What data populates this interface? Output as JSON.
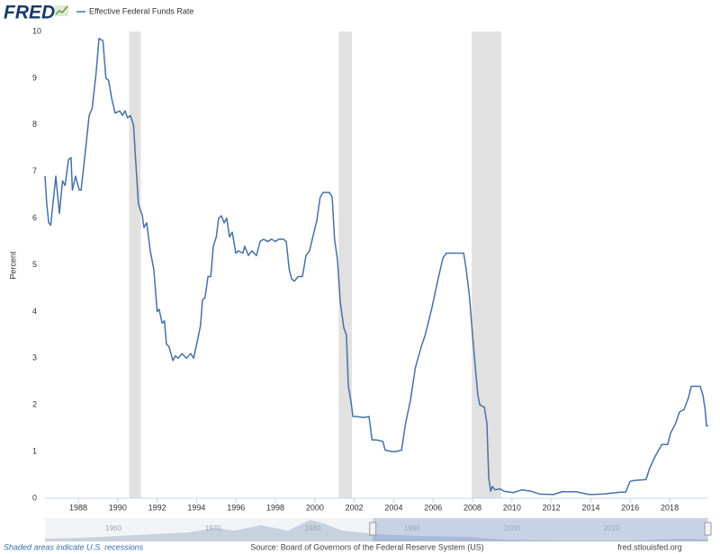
{
  "header": {
    "logo": "FRED"
  },
  "footer": {
    "note": "Shaded areas indicate U.S. recessions",
    "source": "Source: Board of Governors of the Federal Reserve System (US)",
    "site": "fred.stlouisfed.org"
  },
  "chart_data": {
    "type": "line",
    "ylabel": "Percent",
    "x": [
      1986.31,
      1986.4,
      1986.5,
      1986.6,
      1986.86,
      1987.04,
      1987.2,
      1987.33,
      1987.5,
      1987.63,
      1987.7,
      1987.86,
      1988.05,
      1988.14,
      1988.3,
      1988.55,
      1988.7,
      1988.9,
      1989.05,
      1989.25,
      1989.4,
      1989.54,
      1989.7,
      1989.87,
      1990.1,
      1990.24,
      1990.37,
      1990.5,
      1990.64,
      1990.8,
      1990.9,
      1991.05,
      1991.25,
      1991.33,
      1991.47,
      1991.65,
      1991.83,
      1992.0,
      1992.1,
      1992.25,
      1992.37,
      1992.47,
      1992.6,
      1992.8,
      1992.92,
      1993.07,
      1993.26,
      1993.48,
      1993.7,
      1993.85,
      1994.03,
      1994.2,
      1994.3,
      1994.43,
      1994.58,
      1994.72,
      1994.85,
      1995.0,
      1995.12,
      1995.26,
      1995.4,
      1995.53,
      1995.67,
      1995.81,
      1995.99,
      1996.12,
      1996.35,
      1996.44,
      1996.63,
      1996.8,
      1997.04,
      1997.22,
      1997.4,
      1997.6,
      1997.81,
      1998.0,
      1998.17,
      1998.4,
      1998.55,
      1998.7,
      1998.82,
      1998.96,
      1999.15,
      1999.37,
      1999.55,
      1999.73,
      1999.9,
      2000.1,
      2000.27,
      2000.42,
      2000.74,
      2000.88,
      2001.0,
      2001.15,
      2001.29,
      2001.47,
      2001.6,
      2001.7,
      2001.84,
      2001.93,
      2002.1,
      2002.47,
      2002.75,
      2002.9,
      2003.1,
      2003.45,
      2003.57,
      2003.9,
      2004.1,
      2004.4,
      2004.6,
      2004.85,
      2005.1,
      2005.4,
      2005.6,
      2005.95,
      2006.2,
      2006.5,
      2006.67,
      2007.3,
      2007.55,
      2007.68,
      2007.85,
      2007.95,
      2008.1,
      2008.27,
      2008.37,
      2008.6,
      2008.73,
      2008.82,
      2008.92,
      2009.0,
      2009.14,
      2009.4,
      2009.6,
      2010.06,
      2010.5,
      2010.97,
      2011.4,
      2012.1,
      2012.55,
      2013.25,
      2013.93,
      2014.6,
      2015.5,
      2015.77,
      2015.99,
      2016.2,
      2016.8,
      2016.99,
      2017.27,
      2017.6,
      2017.9,
      2018.05,
      2018.3,
      2018.5,
      2018.73,
      2018.95,
      2019.1,
      2019.55,
      2019.69,
      2019.8,
      2019.87,
      2019.96
    ],
    "series": [
      {
        "name": "Effective Federal Funds Rate",
        "color": "#4572a7",
        "values": [
          6.9,
          6.3,
          5.9,
          5.85,
          6.9,
          6.1,
          6.8,
          6.7,
          7.25,
          7.3,
          6.6,
          6.9,
          6.6,
          6.6,
          7.2,
          8.2,
          8.35,
          9.1,
          9.85,
          9.8,
          9.0,
          8.95,
          8.55,
          8.25,
          8.3,
          8.2,
          8.3,
          8.15,
          8.2,
          8.0,
          7.3,
          6.3,
          6.05,
          5.8,
          5.9,
          5.3,
          4.9,
          4.0,
          4.05,
          3.75,
          3.8,
          3.3,
          3.25,
          2.95,
          3.05,
          3.0,
          3.1,
          3.0,
          3.1,
          3.0,
          3.35,
          3.7,
          4.25,
          4.3,
          4.75,
          4.75,
          5.4,
          5.6,
          6.0,
          6.05,
          5.9,
          6.0,
          5.6,
          5.7,
          5.25,
          5.3,
          5.25,
          5.4,
          5.2,
          5.3,
          5.2,
          5.5,
          5.55,
          5.5,
          5.55,
          5.5,
          5.55,
          5.55,
          5.5,
          4.9,
          4.7,
          4.65,
          4.75,
          4.75,
          5.2,
          5.3,
          5.6,
          5.95,
          6.45,
          6.55,
          6.55,
          6.45,
          5.55,
          5.1,
          4.2,
          3.65,
          3.5,
          2.4,
          2.05,
          1.75,
          1.75,
          1.73,
          1.75,
          1.25,
          1.25,
          1.22,
          1.03,
          1.0,
          1.0,
          1.03,
          1.6,
          2.1,
          2.8,
          3.25,
          3.5,
          4.1,
          4.6,
          5.15,
          5.25,
          5.25,
          5.25,
          4.9,
          4.3,
          3.75,
          3.0,
          2.2,
          2.0,
          1.95,
          1.6,
          0.45,
          0.15,
          0.25,
          0.18,
          0.2,
          0.15,
          0.12,
          0.18,
          0.15,
          0.09,
          0.08,
          0.14,
          0.14,
          0.08,
          0.09,
          0.13,
          0.13,
          0.36,
          0.38,
          0.4,
          0.65,
          0.9,
          1.15,
          1.15,
          1.4,
          1.6,
          1.85,
          1.9,
          2.15,
          2.4,
          2.4,
          2.2,
          1.9,
          1.55,
          1.55
        ]
      }
    ],
    "xlim": [
      1986.31,
      2019.96
    ],
    "xticks": [
      1988,
      1990,
      1992,
      1994,
      1996,
      1998,
      2000,
      2002,
      2004,
      2006,
      2008,
      2010,
      2012,
      2014,
      2016,
      2018
    ],
    "ylim": [
      0,
      10
    ],
    "yticks": [
      0,
      1,
      2,
      3,
      4,
      5,
      6,
      7,
      8,
      9,
      10
    ],
    "grid": false,
    "recession_color": "#e1e1e1",
    "recessions": [
      [
        1990.58,
        1991.17
      ],
      [
        2001.21,
        2001.88
      ],
      [
        2007.96,
        2009.46
      ]
    ],
    "navigator": {
      "xlim": [
        1953.4,
        2020
      ],
      "xticks": [
        1960,
        1970,
        1980,
        1990,
        2000,
        2010
      ]
    }
  }
}
